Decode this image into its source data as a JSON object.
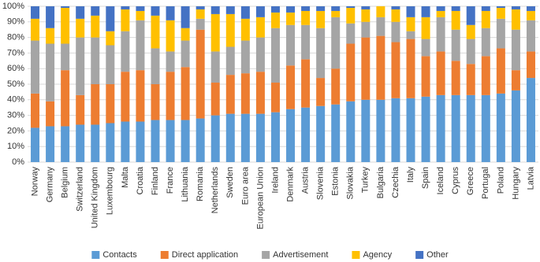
{
  "chart_data": {
    "type": "stacked_bar",
    "categories": [
      "Norway",
      "Germany",
      "Belgium",
      "Switzerland",
      "United Kingdom",
      "Luxembourg",
      "Malta",
      "Croatia",
      "Finland",
      "France",
      "Lithuania",
      "Romania",
      "Netherlands",
      "Sweden",
      "Euro area",
      "European Union",
      "Ireland",
      "Denmark",
      "Austria",
      "Slovenia",
      "Estonia",
      "Slovakia",
      "Turkey",
      "Bulgaria",
      "Czechia",
      "Italy",
      "Spain",
      "Iceland",
      "Cyprus",
      "Greece",
      "Portugal",
      "Poland",
      "Hungary",
      "Latvia"
    ],
    "series": [
      {
        "name": "Contacts",
        "color": "#5b9bd5",
        "values": [
          22,
          23,
          23,
          24,
          24,
          25,
          26,
          26,
          27,
          27,
          27,
          28,
          30,
          31,
          31,
          31,
          32,
          34,
          35,
          36,
          37,
          39,
          40,
          40,
          41,
          41,
          42,
          43,
          43,
          43,
          43,
          44,
          46,
          54
        ]
      },
      {
        "name": "Direct application",
        "color": "#ed7d31",
        "values": [
          22,
          16,
          36,
          19,
          26,
          25,
          32,
          33,
          23,
          31,
          34,
          57,
          21,
          25,
          26,
          27,
          19,
          28,
          31,
          18,
          23,
          37,
          40,
          41,
          36,
          38,
          26,
          28,
          22,
          20,
          25,
          29,
          13,
          17
        ]
      },
      {
        "name": "Advertisement",
        "color": "#a5a5a5",
        "values": [
          34,
          37,
          17,
          37,
          30,
          25,
          26,
          32,
          23,
          13,
          17,
          7,
          20,
          18,
          21,
          22,
          35,
          26,
          22,
          32,
          33,
          13,
          10,
          12,
          13,
          5,
          11,
          22,
          20,
          16,
          18,
          19,
          26,
          20
        ]
      },
      {
        "name": "Agency",
        "color": "#ffc000",
        "values": [
          14,
          10,
          23,
          12,
          14,
          9,
          14,
          6,
          21,
          20,
          8,
          6,
          24,
          21,
          14,
          13,
          10,
          8,
          9,
          11,
          4,
          10,
          8,
          7,
          8,
          9,
          14,
          4,
          12,
          9,
          11,
          7,
          13,
          6
        ]
      },
      {
        "name": "Other",
        "color": "#4472c4",
        "values": [
          8,
          14,
          1,
          8,
          6,
          16,
          2,
          3,
          6,
          9,
          14,
          2,
          5,
          5,
          8,
          7,
          4,
          4,
          3,
          3,
          3,
          1,
          2,
          0,
          2,
          7,
          7,
          3,
          3,
          12,
          3,
          1,
          2,
          3
        ]
      }
    ],
    "ylim": [
      0,
      100
    ],
    "yticks": [
      {
        "value": 0,
        "label": "0%"
      },
      {
        "value": 10,
        "label": "10%"
      },
      {
        "value": 20,
        "label": "20%"
      },
      {
        "value": 30,
        "label": "30%"
      },
      {
        "value": 40,
        "label": "40%"
      },
      {
        "value": 50,
        "label": "50%"
      },
      {
        "value": 60,
        "label": "60%"
      },
      {
        "value": 70,
        "label": "70%"
      },
      {
        "value": 80,
        "label": "80%"
      },
      {
        "value": 90,
        "label": "90%"
      },
      {
        "value": 100,
        "label": "100%"
      }
    ],
    "grid": true,
    "legend": "bottom"
  }
}
